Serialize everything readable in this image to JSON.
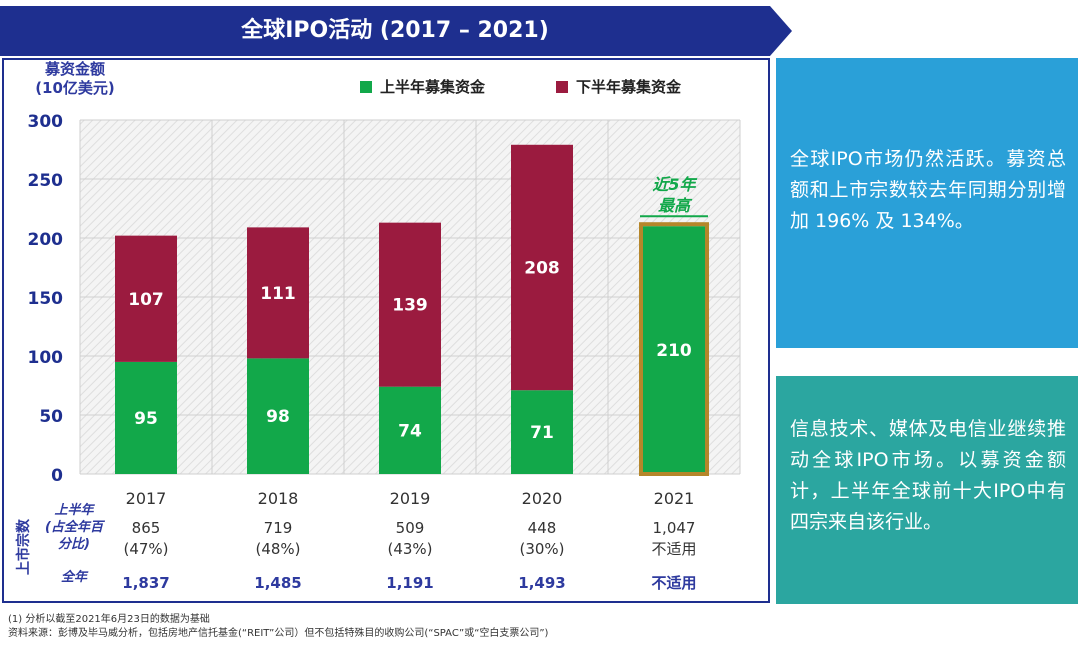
{
  "title": "全球IPO活动 (2017 – 2021)",
  "chart_data": {
    "type": "bar",
    "stacked": true,
    "ylabel": "募资金额\n(10亿美元)",
    "ylim": [
      0,
      300
    ],
    "yticks": [
      "0",
      "50",
      "100",
      "150",
      "200",
      "250",
      "300"
    ],
    "categories": [
      "2017",
      "2018",
      "2019",
      "2020",
      "2021"
    ],
    "series": [
      {
        "name": "上半年募集资金",
        "color": "#12a84a",
        "values": [
          95,
          98,
          74,
          71,
          210
        ],
        "labels": [
          "95",
          "98",
          "74",
          "71",
          "210"
        ]
      },
      {
        "name": "下半年募集资金",
        "color": "#9b1b3f",
        "values": [
          107,
          111,
          139,
          208,
          0
        ],
        "labels": [
          "107",
          "111",
          "139",
          "208",
          ""
        ]
      }
    ],
    "legend_position": "top",
    "grid": true,
    "annotation": "近5年\n最高",
    "highlight_outline_color": "#b5862a"
  },
  "count_table": {
    "side_label": "上市宗数",
    "h1_label": "上半年\n(占全年百\n分比)",
    "full_label": "全年",
    "h1_counts": [
      "865",
      "719",
      "509",
      "448",
      "1,047"
    ],
    "h1_pcts": [
      "(47%)",
      "(48%)",
      "(43%)",
      "(30%)",
      "不适用"
    ],
    "full_counts": [
      "1,837",
      "1,485",
      "1,191",
      "1,493",
      "不适用"
    ]
  },
  "panels": {
    "p1": "全球IPO市场仍然活跃。募资总额和上市宗数较去年同期分别增加 196% 及 134%。",
    "p2": "信息技术、媒体及电信业继续推动全球IPO市场。以募资金额计，上半年全球前十大IPO中有四宗来自该行业。"
  },
  "footnotes": {
    "note1": "(1) 分析以截至2021年6月23日的数据为基础",
    "source": "资料来源：彭博及毕马威分析，包括房地产信托基金(“REIT”公司）但不包括特殊目的收购公司(“SPAC”或“空白支票公司”)"
  }
}
